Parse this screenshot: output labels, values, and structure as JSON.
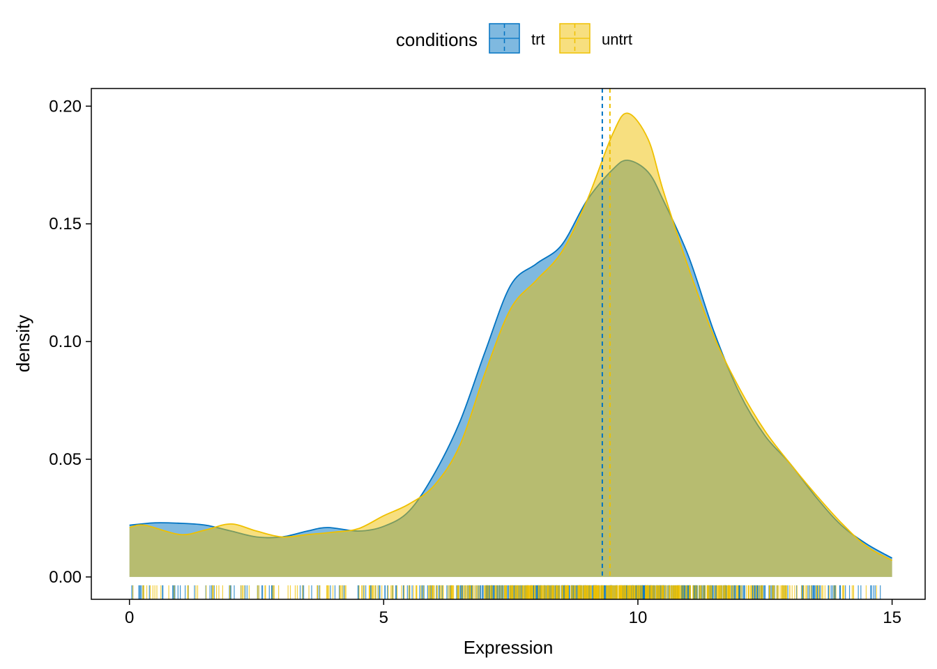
{
  "chart_data": {
    "type": "area",
    "title": "",
    "xlabel": "Expression",
    "ylabel": "density",
    "xlim": [
      -0.75,
      15.65
    ],
    "ylim": [
      -0.0095,
      0.2075
    ],
    "x_ticks": [
      0,
      5,
      10,
      15
    ],
    "x_tick_labels": [
      "0",
      "5",
      "10",
      "15"
    ],
    "y_ticks": [
      0.0,
      0.05,
      0.1,
      0.15,
      0.2
    ],
    "y_tick_labels": [
      "0.00",
      "0.05",
      "0.10",
      "0.15",
      "0.20"
    ],
    "grid": false,
    "legend": {
      "title": "conditions",
      "position": "top"
    },
    "series": [
      {
        "name": "trt",
        "color": "#0073C2",
        "fill": "#0073C2",
        "fill_opacity": 0.5,
        "mean": 9.3,
        "x": [
          0,
          0.5,
          1,
          1.5,
          2,
          2.5,
          3,
          3.5,
          3.9,
          4.5,
          5,
          5.5,
          6,
          6.5,
          7,
          7.5,
          8,
          8.5,
          9,
          9.5,
          9.8,
          10.2,
          10.5,
          11,
          11.5,
          12,
          12.5,
          13,
          13.5,
          14,
          14.5,
          15
        ],
        "y": [
          0.022,
          0.023,
          0.0228,
          0.022,
          0.0195,
          0.017,
          0.017,
          0.0195,
          0.021,
          0.0195,
          0.0215,
          0.028,
          0.044,
          0.066,
          0.096,
          0.124,
          0.133,
          0.141,
          0.16,
          0.173,
          0.177,
          0.172,
          0.16,
          0.136,
          0.104,
          0.078,
          0.06,
          0.048,
          0.034,
          0.022,
          0.014,
          0.008
        ]
      },
      {
        "name": "untrt",
        "color": "#EFC000",
        "fill": "#EFC000",
        "fill_opacity": 0.5,
        "mean": 9.45,
        "x": [
          0,
          0.3,
          1,
          1.5,
          2,
          2.5,
          3,
          3.5,
          4,
          4.5,
          5,
          5.5,
          6,
          6.5,
          7,
          7.5,
          8,
          8.5,
          9,
          9.5,
          9.8,
          10.2,
          10.5,
          11,
          11.5,
          12,
          12.5,
          13,
          13.5,
          14,
          14.5,
          15
        ],
        "y": [
          0.021,
          0.022,
          0.018,
          0.02,
          0.0225,
          0.0195,
          0.017,
          0.018,
          0.019,
          0.0205,
          0.026,
          0.031,
          0.039,
          0.056,
          0.087,
          0.114,
          0.126,
          0.138,
          0.16,
          0.188,
          0.197,
          0.186,
          0.164,
          0.131,
          0.102,
          0.08,
          0.062,
          0.048,
          0.035,
          0.023,
          0.013,
          0.007
        ]
      }
    ],
    "rug": "per-observation tick marks along the bottom of the panel, colored by condition, dense between 7 and 12"
  }
}
